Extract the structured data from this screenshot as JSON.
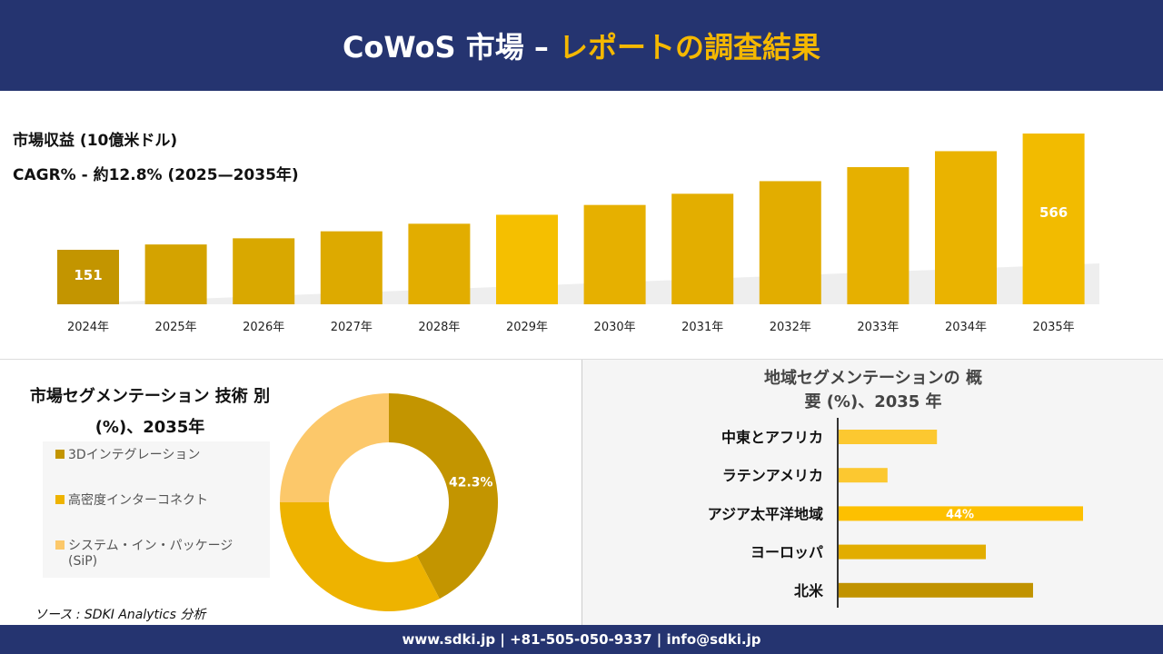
{
  "header": {
    "title": "CoWoS 市場 –",
    "title_accent": "レポートの調査結果"
  },
  "revenue_label": "市場収益 (10億米ドル)",
  "cagr_label": "CAGR% - 約12.8% (2025—2035年)",
  "footer": "www.sdki.jp | +81-505-050-9337 | info@sdki.jp",
  "source": "ソース : SDKI Analytics 分析",
  "chart_data": [
    {
      "type": "bar",
      "title": "市場収益 (10億米ドル)",
      "categories": [
        "2024年",
        "2025年",
        "2026年",
        "2027年",
        "2028年",
        "2029年",
        "2030年",
        "2031年",
        "2032年",
        "2033年",
        "2034年",
        "2035年"
      ],
      "values": [
        151,
        170,
        192,
        217,
        244,
        276,
        311,
        351,
        396,
        446,
        503,
        566
      ],
      "data_labels": {
        "0": "151",
        "11": "566"
      },
      "colors": [
        "#c39500",
        "#d4a300",
        "#d9a800",
        "#ddaa00",
        "#e2ad00",
        "#f5bf00",
        "#e6b000",
        "#e3ae00",
        "#e2ad00",
        "#e6b000",
        "#eab300",
        "#f2bb00"
      ]
    },
    {
      "type": "pie",
      "title": "市場セグメンテーション 技術 別 (%)、2035年",
      "labels": [
        "3Dインテグレーション",
        "高密度インターコネクト",
        "システム・イン・パッケージ (SiP)"
      ],
      "values": [
        42.3,
        32.7,
        25.0
      ],
      "colors": [
        "#c39500",
        "#eeb300",
        "#fcc86a"
      ],
      "data_labels": [
        "42.3%",
        "",
        ""
      ]
    },
    {
      "type": "bar",
      "orientation": "horizontal",
      "title": "地域セグメンテーションの 概要 (%)、2035 年",
      "categories": [
        "中東とアフリカ",
        "ラテンアメリカ",
        "アジア太平洋地域",
        "ヨーロッパ",
        "北米"
      ],
      "values": [
        17.7,
        8.8,
        44,
        26.5,
        35
      ],
      "data_labels": [
        "",
        "",
        "44%",
        "",
        ""
      ],
      "colors": [
        "#fcc830",
        "#fcc830",
        "#fdc000",
        "#e2ad00",
        "#c19300"
      ]
    }
  ]
}
